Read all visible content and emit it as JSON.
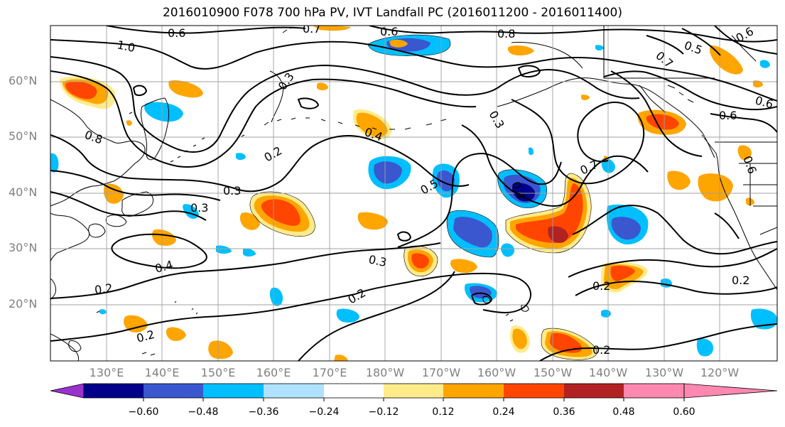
{
  "title": "2016010900 F078 700 hPa PV, IVT Landfall PC (2016011200 - 2016011400)",
  "map": {
    "lat_labels": [
      "60°N",
      "50°N",
      "40°N",
      "30°N",
      "20°N"
    ],
    "lon_labels": [
      "130°E",
      "140°E",
      "150°E",
      "160°E",
      "170°E",
      "180°W",
      "170°W",
      "160°W",
      "150°W",
      "140°W",
      "130°W",
      "120°W"
    ],
    "contour_labels": [
      "0.6",
      "0.7",
      "0.6",
      "0.8",
      "1.0",
      "0.7",
      "0.5",
      "0.6",
      "0.6",
      "0.6",
      "0.8",
      "0.3",
      "0.4",
      "0.3",
      "0.2",
      "0.5",
      "0.4",
      "0.7",
      "0.3",
      "0.3",
      "0.4",
      "0.2",
      "0.3",
      "0.2",
      "0.2",
      "0.2",
      "0.2",
      "0.2",
      "0.6"
    ],
    "colors": {
      "land": "#000000",
      "grid": "#a0a0a0",
      "contour": "#000000",
      "axis_label": "#808080"
    }
  },
  "colorbar": {
    "tick_labels": [
      "−0.60",
      "−0.48",
      "−0.36",
      "−0.24",
      "−0.12",
      "0.12",
      "0.24",
      "0.36",
      "0.48",
      "0.60"
    ],
    "colors": [
      "#9932cc",
      "#00008b",
      "#3a57cf",
      "#00bfff",
      "#b0e2ff",
      "#ffffff",
      "#ffeb8a",
      "#ffa500",
      "#ff4500",
      "#b22222",
      "#ff88b0"
    ]
  }
}
